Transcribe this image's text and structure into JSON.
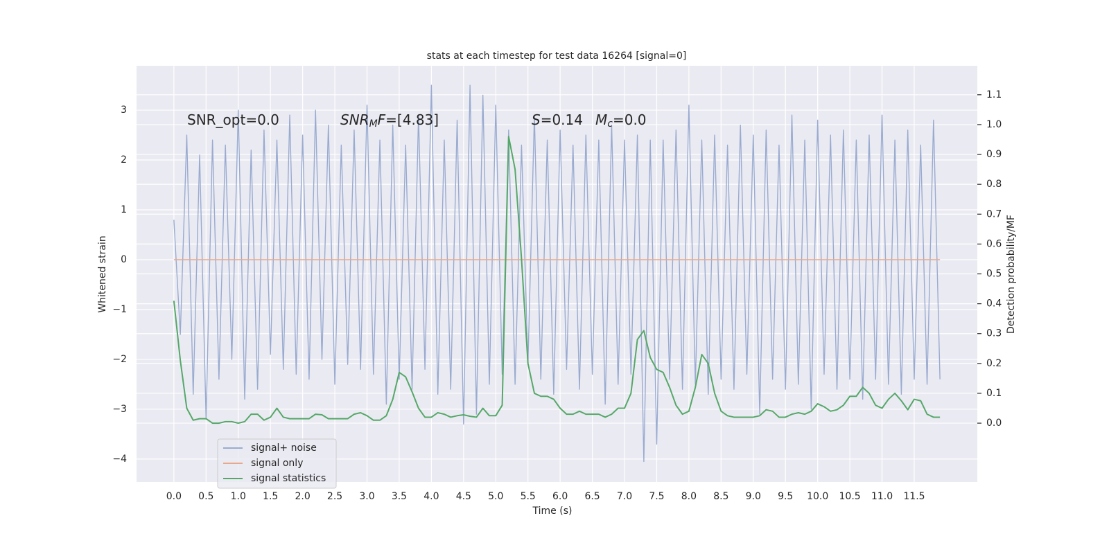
{
  "chart_data": {
    "type": "line",
    "title": "stats at each timestep for test data 16264 [signal=0]",
    "xlabel": "Time (s)",
    "ylabel": "Whitened strain",
    "y2label": "Detection probability/MF",
    "grid": true,
    "legend": "lower left",
    "xlim": [
      -0.58,
      12.48
    ],
    "ylim": [
      -4.46,
      3.89
    ],
    "y2lim": [
      -0.197,
      1.197
    ],
    "xticks": [
      {
        "value": 0,
        "label": "0.0"
      },
      0.5,
      {
        "value": 1,
        "label": "1.0"
      },
      1.5,
      {
        "value": 2,
        "label": "2.0"
      },
      2.5,
      {
        "value": 3,
        "label": "3.0"
      },
      3.5,
      {
        "value": 4,
        "label": "4.0"
      },
      4.5,
      {
        "value": 5,
        "label": "5.0"
      },
      5.5,
      {
        "value": 6,
        "label": "6.0"
      },
      6.5,
      {
        "value": 7,
        "label": "7.0"
      },
      7.5,
      {
        "value": 8,
        "label": "8.0"
      },
      8.5,
      {
        "value": 9,
        "label": "9.0"
      },
      9.5,
      {
        "value": 10,
        "label": "10.0"
      },
      10.5,
      {
        "value": 11,
        "label": "11.0"
      },
      11.5
    ],
    "yticks": [
      {
        "value": -4,
        "label": "−4"
      },
      {
        "value": -3,
        "label": "−3"
      },
      {
        "value": -2,
        "label": "−2"
      },
      {
        "value": -1,
        "label": "−1"
      },
      0,
      1,
      2,
      3
    ],
    "y2ticks": [
      {
        "value": 0,
        "label": "0.0"
      },
      0.1,
      0.2,
      0.3,
      0.4,
      0.5,
      0.6,
      0.7,
      0.8,
      0.9,
      {
        "value": 1,
        "label": "1.0"
      },
      1.1
    ],
    "annotations": [
      [
        {
          "text": "SNR_opt=0.0"
        }
      ],
      [
        {
          "text": "SNR",
          "italic": true
        },
        {
          "text": "M",
          "italic": true,
          "sub": true
        },
        {
          "text": "F",
          "italic": true
        },
        {
          "text": "=[4.83]"
        }
      ],
      [
        {
          "text": "S",
          "italic": true
        },
        {
          "text": "=0.14"
        }
      ],
      [
        {
          "text": "M",
          "italic": true
        },
        {
          "text": "c",
          "italic": true,
          "sub": true
        },
        {
          "text": "=0.0"
        }
      ]
    ],
    "x": [
      0,
      0.1,
      0.2,
      0.3,
      0.4,
      0.5,
      0.6,
      0.7,
      0.8,
      0.9,
      1,
      1.1,
      1.2,
      1.3,
      1.4,
      1.5,
      1.6,
      1.7,
      1.8,
      1.9,
      2,
      2.1,
      2.2,
      2.3,
      2.4,
      2.5,
      2.6,
      2.7,
      2.8,
      2.9,
      3,
      3.1,
      3.2,
      3.3,
      3.4,
      3.5,
      3.6,
      3.7,
      3.8,
      3.9,
      4,
      4.1,
      4.2,
      4.3,
      4.4,
      4.5,
      4.6,
      4.7,
      4.8,
      4.9,
      5,
      5.1,
      5.2,
      5.3,
      5.4,
      5.5,
      5.6,
      5.7,
      5.8,
      5.9,
      6,
      6.1,
      6.2,
      6.3,
      6.4,
      6.5,
      6.6,
      6.7,
      6.8,
      6.9,
      7,
      7.1,
      7.2,
      7.3,
      7.4,
      7.5,
      7.6,
      7.7,
      7.8,
      7.9,
      8,
      8.1,
      8.2,
      8.3,
      8.4,
      8.5,
      8.6,
      8.7,
      8.8,
      8.9,
      9,
      9.1,
      9.2,
      9.3,
      9.4,
      9.5,
      9.6,
      9.7,
      9.8,
      9.9,
      10,
      10.1,
      10.2,
      10.3,
      10.4,
      10.5,
      10.6,
      10.7,
      10.8,
      10.9,
      11,
      11.1,
      11.2,
      11.3,
      11.4,
      11.5,
      11.6,
      11.7,
      11.8,
      11.9
    ],
    "series": [
      {
        "name": "signal+ noise",
        "color": "#9aabd0",
        "values": [
          0.8,
          -1.5,
          2.5,
          -2.7,
          2.1,
          -3.2,
          2.4,
          -2.4,
          2.3,
          -2.0,
          3.0,
          -2.8,
          2.2,
          -2.6,
          2.6,
          -1.9,
          2.4,
          -2.2,
          2.9,
          -2.3,
          2.5,
          -2.4,
          3.0,
          -2.0,
          2.7,
          -2.5,
          2.3,
          -2.1,
          2.6,
          -2.2,
          3.1,
          -2.3,
          2.4,
          -2.9,
          2.7,
          -2.4,
          2.3,
          -2.6,
          2.9,
          -2.2,
          3.5,
          -2.7,
          2.4,
          -2.6,
          2.8,
          -3.3,
          3.5,
          -3.1,
          3.3,
          -2.5,
          3.1,
          -2.3,
          2.6,
          -2.5,
          2.3,
          -2.1,
          2.9,
          -2.4,
          2.4,
          -2.7,
          2.6,
          -2.2,
          2.3,
          -2.6,
          2.5,
          -2.3,
          2.4,
          -2.9,
          2.7,
          -2.5,
          2.4,
          -2.3,
          2.5,
          -4.05,
          2.4,
          -3.7,
          2.4,
          -2.4,
          2.6,
          -2.6,
          3.1,
          -2.5,
          2.4,
          -2.7,
          2.5,
          -2.4,
          2.3,
          -2.6,
          2.7,
          -2.3,
          2.5,
          -3.1,
          2.6,
          -2.4,
          2.3,
          -2.6,
          2.9,
          -2.5,
          2.4,
          -3.0,
          2.8,
          -2.3,
          2.5,
          -2.6,
          2.6,
          -2.4,
          2.4,
          -2.8,
          2.5,
          -2.4,
          2.9,
          -2.5,
          2.4,
          -2.7,
          2.6,
          -2.4,
          2.3,
          -2.5,
          2.8,
          -2.4
        ]
      },
      {
        "name": "signal only",
        "color": "#e8a98a",
        "values": [
          0,
          0,
          0,
          0,
          0,
          0,
          0,
          0,
          0,
          0,
          0,
          0,
          0,
          0,
          0,
          0,
          0,
          0,
          0,
          0,
          0,
          0,
          0,
          0,
          0,
          0,
          0,
          0,
          0,
          0,
          0,
          0,
          0,
          0,
          0,
          0,
          0,
          0,
          0,
          0,
          0,
          0,
          0,
          0,
          0,
          0,
          0,
          0,
          0,
          0,
          0,
          0,
          0,
          0,
          0,
          0,
          0,
          0,
          0,
          0,
          0,
          0,
          0,
          0,
          0,
          0,
          0,
          0,
          0,
          0,
          0,
          0,
          0,
          0,
          0,
          0,
          0,
          0,
          0,
          0,
          0,
          0,
          0,
          0,
          0,
          0,
          0,
          0,
          0,
          0,
          0,
          0,
          0,
          0,
          0,
          0,
          0,
          0,
          0,
          0,
          0,
          0,
          0,
          0,
          0,
          0,
          0,
          0,
          0,
          0,
          0,
          0,
          0,
          0,
          0,
          0,
          0,
          0,
          0,
          0
        ]
      },
      {
        "name": "signal statistics",
        "color": "#55a868",
        "axis": "y2",
        "values": [
          0.41,
          0.21,
          0.05,
          0.01,
          0.015,
          0.015,
          0.0,
          0.0,
          0.005,
          0.005,
          0.0,
          0.005,
          0.03,
          0.03,
          0.01,
          0.02,
          0.05,
          0.02,
          0.015,
          0.015,
          0.015,
          0.015,
          0.03,
          0.028,
          0.015,
          0.015,
          0.015,
          0.015,
          0.03,
          0.035,
          0.025,
          0.01,
          0.01,
          0.025,
          0.08,
          0.17,
          0.155,
          0.105,
          0.05,
          0.02,
          0.02,
          0.035,
          0.03,
          0.02,
          0.025,
          0.028,
          0.023,
          0.02,
          0.05,
          0.025,
          0.025,
          0.06,
          0.96,
          0.85,
          0.55,
          0.2,
          0.1,
          0.09,
          0.09,
          0.08,
          0.05,
          0.03,
          0.03,
          0.04,
          0.03,
          0.03,
          0.03,
          0.02,
          0.03,
          0.05,
          0.05,
          0.1,
          0.28,
          0.31,
          0.22,
          0.18,
          0.17,
          0.12,
          0.06,
          0.03,
          0.04,
          0.12,
          0.23,
          0.2,
          0.1,
          0.04,
          0.025,
          0.02,
          0.02,
          0.02,
          0.02,
          0.025,
          0.045,
          0.04,
          0.02,
          0.02,
          0.03,
          0.035,
          0.03,
          0.04,
          0.065,
          0.055,
          0.04,
          0.045,
          0.06,
          0.09,
          0.09,
          0.12,
          0.1,
          0.06,
          0.05,
          0.08,
          0.1,
          0.075,
          0.045,
          0.08,
          0.075,
          0.03,
          0.02,
          0.02
        ]
      }
    ]
  }
}
